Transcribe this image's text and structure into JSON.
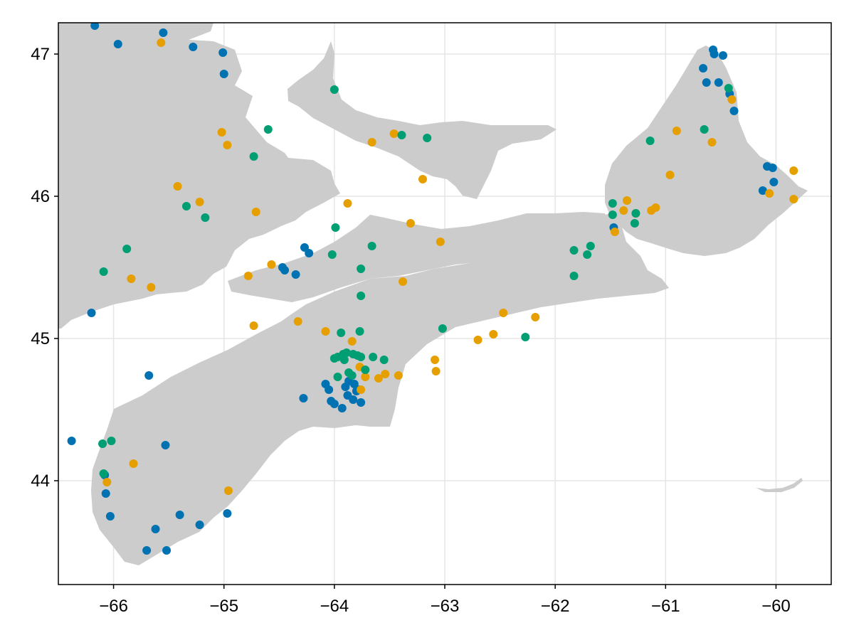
{
  "chart_data": {
    "type": "scatter",
    "title": "",
    "xlabel": "",
    "ylabel": "",
    "xlim": [
      -66.5,
      -59.5
    ],
    "ylim": [
      43.27,
      47.22
    ],
    "x_ticks": [
      -66,
      -65,
      -64,
      -63,
      -62,
      -61,
      -60
    ],
    "x_tick_labels": [
      "−66",
      "−65",
      "−64",
      "−63",
      "−62",
      "−61",
      "−60"
    ],
    "y_ticks": [
      44,
      45,
      46,
      47
    ],
    "y_tick_labels": [
      "44",
      "45",
      "46",
      "47"
    ],
    "grid": true,
    "land_color": "#cccccc",
    "series": [
      {
        "color": "#0072b2",
        "points": [
          [
            -66.17,
            47.2
          ],
          [
            -65.55,
            47.15
          ],
          [
            -65.96,
            47.07
          ],
          [
            -65.28,
            47.05
          ],
          [
            -65.01,
            47.01
          ],
          [
            -65.0,
            46.86
          ],
          [
            -60.57,
            47.03
          ],
          [
            -60.56,
            47.0
          ],
          [
            -60.48,
            46.99
          ],
          [
            -60.66,
            46.9
          ],
          [
            -60.63,
            46.8
          ],
          [
            -60.52,
            46.8
          ],
          [
            -60.42,
            46.72
          ],
          [
            -60.38,
            46.6
          ],
          [
            -60.08,
            46.21
          ],
          [
            -60.03,
            46.2
          ],
          [
            -60.02,
            46.1
          ],
          [
            -60.12,
            46.04
          ],
          [
            -61.47,
            45.78
          ],
          [
            -64.27,
            45.64
          ],
          [
            -64.23,
            45.6
          ],
          [
            -64.47,
            45.5
          ],
          [
            -64.45,
            45.48
          ],
          [
            -64.35,
            45.45
          ],
          [
            -66.2,
            45.18
          ],
          [
            -65.68,
            44.74
          ],
          [
            -64.28,
            44.58
          ],
          [
            -64.08,
            44.68
          ],
          [
            -64.05,
            44.64
          ],
          [
            -64.03,
            44.56
          ],
          [
            -64.0,
            44.54
          ],
          [
            -63.93,
            44.51
          ],
          [
            -63.9,
            44.66
          ],
          [
            -63.87,
            44.7
          ],
          [
            -63.82,
            44.68
          ],
          [
            -63.8,
            44.63
          ],
          [
            -63.88,
            44.6
          ],
          [
            -63.83,
            44.57
          ],
          [
            -63.76,
            44.55
          ],
          [
            -63.78,
            44.64
          ],
          [
            -66.38,
            44.28
          ],
          [
            -65.53,
            44.25
          ],
          [
            -66.08,
            44.04
          ],
          [
            -66.07,
            43.91
          ],
          [
            -66.03,
            43.75
          ],
          [
            -65.4,
            43.76
          ],
          [
            -64.97,
            43.77
          ],
          [
            -65.22,
            43.69
          ],
          [
            -65.62,
            43.66
          ],
          [
            -65.7,
            43.51
          ],
          [
            -65.52,
            43.51
          ]
        ]
      },
      {
        "color": "#e69f00",
        "points": [
          [
            -65.57,
            47.08
          ],
          [
            -65.02,
            46.45
          ],
          [
            -64.97,
            46.36
          ],
          [
            -63.46,
            46.44
          ],
          [
            -63.66,
            46.38
          ],
          [
            -63.2,
            46.12
          ],
          [
            -60.9,
            46.46
          ],
          [
            -60.58,
            46.38
          ],
          [
            -60.4,
            46.68
          ],
          [
            -60.96,
            46.15
          ],
          [
            -59.84,
            46.18
          ],
          [
            -60.06,
            46.02
          ],
          [
            -59.84,
            45.98
          ],
          [
            -61.35,
            45.97
          ],
          [
            -61.38,
            45.9
          ],
          [
            -61.27,
            45.88
          ],
          [
            -61.13,
            45.9
          ],
          [
            -61.09,
            45.92
          ],
          [
            -61.46,
            45.75
          ],
          [
            -65.42,
            46.07
          ],
          [
            -65.22,
            45.96
          ],
          [
            -64.71,
            45.89
          ],
          [
            -63.88,
            45.95
          ],
          [
            -63.31,
            45.81
          ],
          [
            -63.04,
            45.68
          ],
          [
            -64.57,
            45.52
          ],
          [
            -64.78,
            45.44
          ],
          [
            -65.84,
            45.42
          ],
          [
            -65.66,
            45.36
          ],
          [
            -63.38,
            45.4
          ],
          [
            -64.33,
            45.12
          ],
          [
            -64.73,
            45.09
          ],
          [
            -64.08,
            45.05
          ],
          [
            -63.84,
            44.98
          ],
          [
            -62.47,
            45.18
          ],
          [
            -62.18,
            45.15
          ],
          [
            -62.56,
            45.03
          ],
          [
            -62.7,
            44.99
          ],
          [
            -63.09,
            44.85
          ],
          [
            -63.08,
            44.77
          ],
          [
            -63.77,
            44.8
          ],
          [
            -63.72,
            44.73
          ],
          [
            -63.54,
            44.75
          ],
          [
            -63.6,
            44.72
          ],
          [
            -63.42,
            44.74
          ],
          [
            -63.76,
            44.64
          ],
          [
            -65.82,
            44.12
          ],
          [
            -66.06,
            43.99
          ],
          [
            -64.96,
            43.93
          ]
        ]
      },
      {
        "color": "#009e73",
        "points": [
          [
            -64.0,
            46.75
          ],
          [
            -64.6,
            46.47
          ],
          [
            -63.39,
            46.43
          ],
          [
            -63.16,
            46.41
          ],
          [
            -64.73,
            46.28
          ],
          [
            -60.43,
            46.76
          ],
          [
            -60.65,
            46.47
          ],
          [
            -61.14,
            46.39
          ],
          [
            -61.48,
            45.95
          ],
          [
            -61.48,
            45.87
          ],
          [
            -61.27,
            45.88
          ],
          [
            -61.28,
            45.81
          ],
          [
            -65.34,
            45.93
          ],
          [
            -65.17,
            45.85
          ],
          [
            -63.99,
            45.78
          ],
          [
            -64.02,
            45.59
          ],
          [
            -63.66,
            45.65
          ],
          [
            -61.68,
            45.65
          ],
          [
            -61.83,
            45.62
          ],
          [
            -61.71,
            45.59
          ],
          [
            -61.83,
            45.44
          ],
          [
            -65.88,
            45.63
          ],
          [
            -66.09,
            45.47
          ],
          [
            -63.76,
            45.49
          ],
          [
            -63.76,
            45.3
          ],
          [
            -63.77,
            45.05
          ],
          [
            -63.94,
            45.04
          ],
          [
            -63.02,
            45.07
          ],
          [
            -62.27,
            45.01
          ],
          [
            -64.0,
            44.86
          ],
          [
            -63.97,
            44.87
          ],
          [
            -63.92,
            44.89
          ],
          [
            -63.89,
            44.9
          ],
          [
            -63.83,
            44.89
          ],
          [
            -63.79,
            44.88
          ],
          [
            -63.76,
            44.87
          ],
          [
            -63.91,
            44.85
          ],
          [
            -63.65,
            44.87
          ],
          [
            -63.55,
            44.85
          ],
          [
            -63.72,
            44.78
          ],
          [
            -63.87,
            44.76
          ],
          [
            -63.84,
            44.74
          ],
          [
            -63.97,
            44.73
          ],
          [
            -66.1,
            44.26
          ],
          [
            -66.02,
            44.28
          ],
          [
            -66.09,
            44.05
          ]
        ]
      }
    ]
  }
}
